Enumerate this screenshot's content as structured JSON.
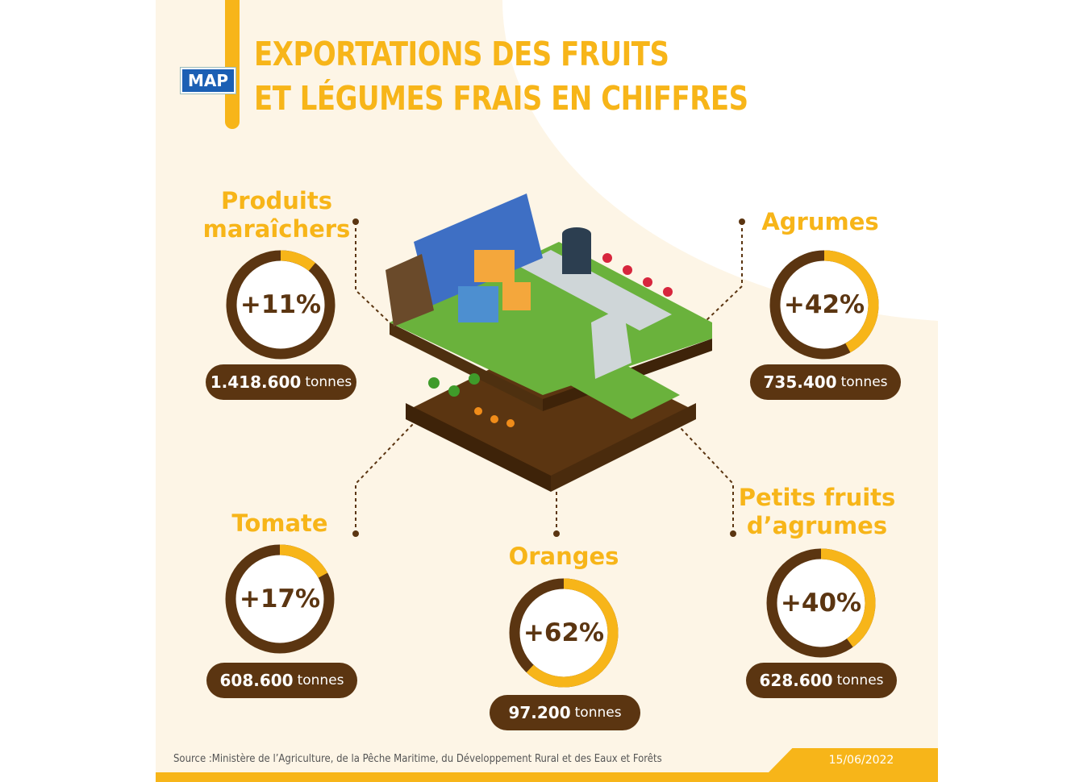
{
  "header": {
    "logo": "MAP",
    "title_line1": "EXPORTATIONS DES FRUITS",
    "title_line2": "ET LÉGUMES FRAIS EN CHIFFRES"
  },
  "items": [
    {
      "label_line1": "Produits",
      "label_line2": "maraîchers",
      "percent_label": "+11%",
      "percent": 11,
      "value": "1.418.600",
      "unit": "tonnes"
    },
    {
      "label_line1": "Agrumes",
      "label_line2": "",
      "percent_label": "+42%",
      "percent": 42,
      "value": "735.400",
      "unit": "tonnes"
    },
    {
      "label_line1": "Tomate",
      "label_line2": "",
      "percent_label": "+17%",
      "percent": 17,
      "value": "608.600",
      "unit": "tonnes"
    },
    {
      "label_line1": "Oranges",
      "label_line2": "",
      "percent_label": "+62%",
      "percent": 62,
      "value": "97.200",
      "unit": "tonnes"
    },
    {
      "label_line1": "Petits fruits",
      "label_line2": "d’agrumes",
      "percent_label": "+40%",
      "percent": 40,
      "value": "628.600",
      "unit": "tonnes"
    }
  ],
  "footer": {
    "source": "Source :Ministère de l’Agriculture, de la Pêche Maritime, du Développement Rural et des Eaux et Forêts",
    "date": "15/06/2022"
  },
  "colors": {
    "accent": "#f7b519",
    "brown": "#5b3511",
    "background": "#fdf5e6"
  }
}
